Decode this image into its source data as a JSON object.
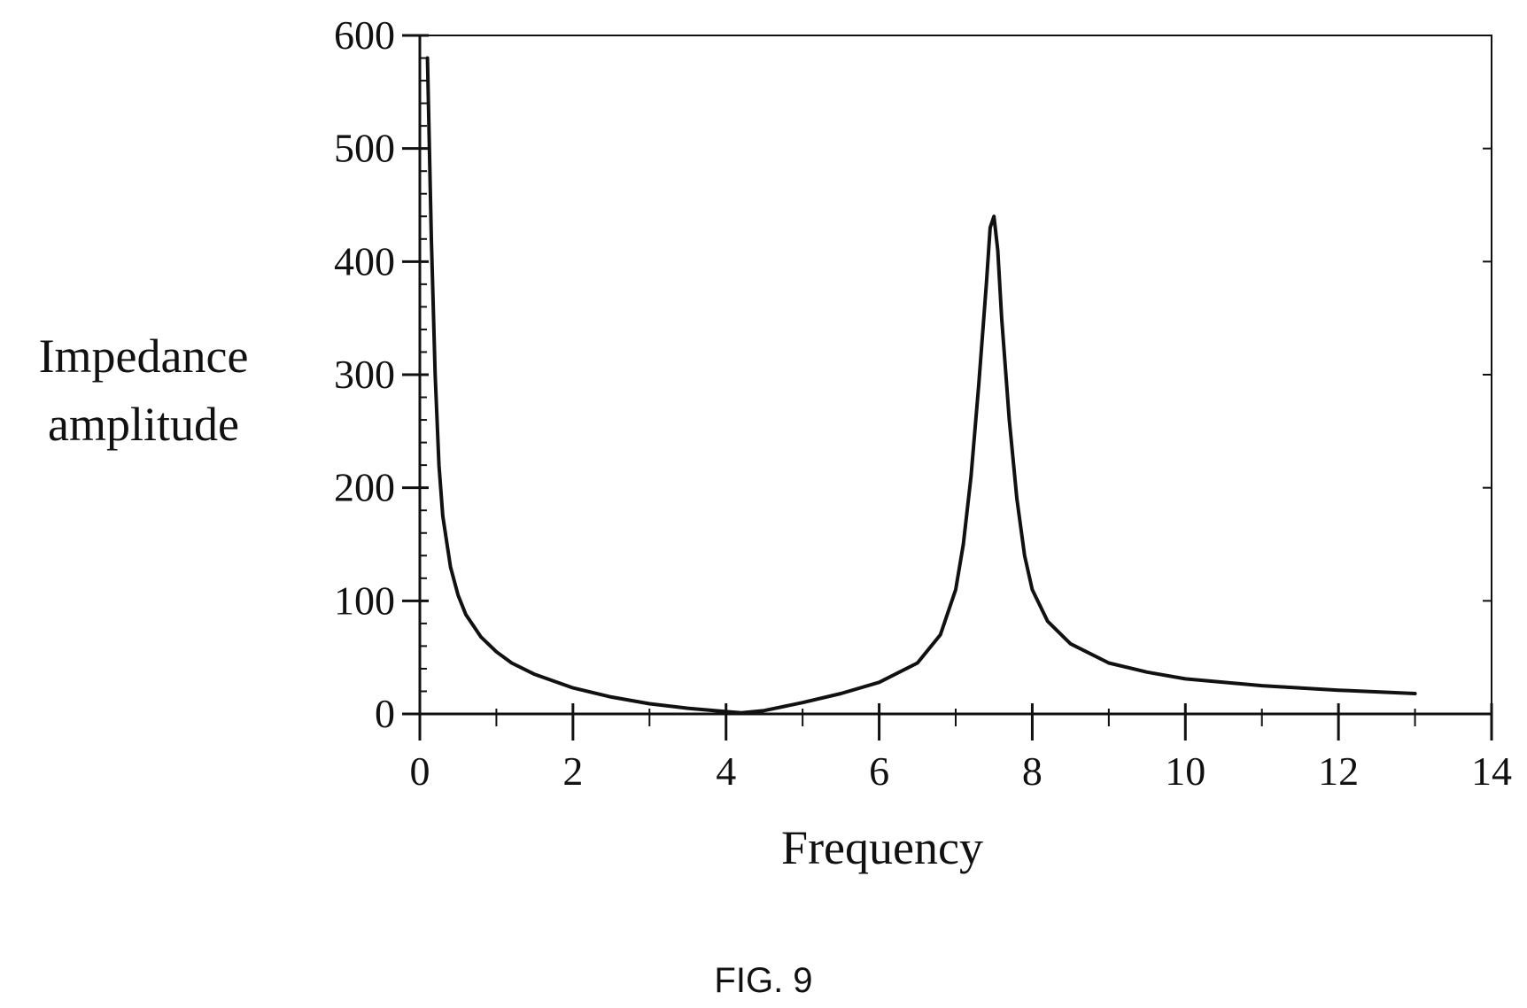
{
  "chart_data": {
    "type": "line",
    "title": "",
    "xlabel": "Frequency",
    "ylabel_lines": [
      "Impedance",
      "amplitude"
    ],
    "xlim": [
      0,
      14
    ],
    "ylim": [
      0,
      600
    ],
    "xticks": [
      0,
      2,
      4,
      6,
      8,
      10,
      12,
      14
    ],
    "yticks": [
      0,
      100,
      200,
      300,
      400,
      500,
      600
    ],
    "grid": false,
    "series": [
      {
        "x": [
          0.1,
          0.15,
          0.2,
          0.25,
          0.3,
          0.4,
          0.5,
          0.6,
          0.8,
          1.0,
          1.2,
          1.5,
          2.0,
          2.5,
          3.0,
          3.5,
          4.0,
          4.2,
          4.5,
          5.0,
          5.5,
          6.0,
          6.5,
          6.8,
          7.0,
          7.1,
          7.2,
          7.3,
          7.4,
          7.45,
          7.5,
          7.55,
          7.6,
          7.7,
          7.8,
          7.9,
          8.0,
          8.2,
          8.5,
          9.0,
          9.5,
          10.0,
          11.0,
          12.0,
          13.0
        ],
        "y": [
          580,
          420,
          300,
          220,
          175,
          130,
          105,
          88,
          68,
          55,
          45,
          35,
          23,
          15,
          9,
          5,
          2,
          1,
          3,
          10,
          18,
          28,
          45,
          70,
          110,
          150,
          210,
          290,
          380,
          430,
          440,
          410,
          350,
          260,
          190,
          140,
          110,
          82,
          62,
          45,
          37,
          31,
          25,
          21,
          18
        ]
      }
    ]
  },
  "caption": "FIG. 9"
}
